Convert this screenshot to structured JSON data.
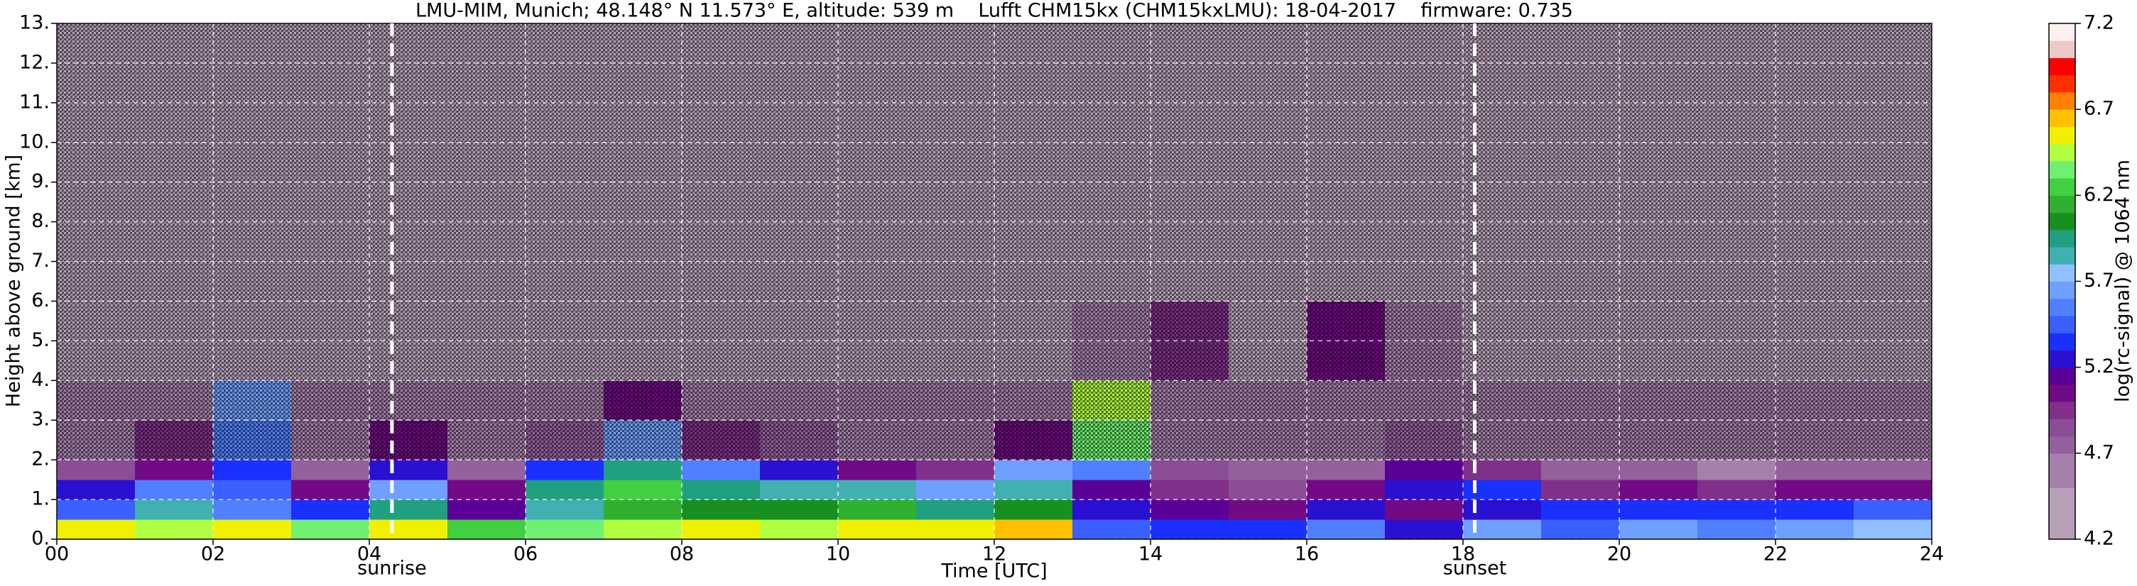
{
  "chart_data": {
    "type": "heatmap",
    "title": "LMU-MIM, Munich; 48.148° N 11.573° E, altitude: 539 m    Lufft CHM15kx (CHM15kxLMU): 18-04-2017    firmware: 0.735",
    "x_label": "Time [UTC]",
    "y_label": "Height above ground [km]",
    "colorbar_label": "log(rc-signal) @ 1064 nm",
    "xlim": [
      0,
      24
    ],
    "ylim": [
      0,
      13
    ],
    "xticks": [
      {
        "value": 0,
        "label": "00"
      },
      {
        "value": 2,
        "label": "02"
      },
      {
        "value": 4,
        "label": "04"
      },
      {
        "value": 6,
        "label": "06"
      },
      {
        "value": 8,
        "label": "08"
      },
      {
        "value": 10,
        "label": "10"
      },
      {
        "value": 12,
        "label": "12"
      },
      {
        "value": 14,
        "label": "14"
      },
      {
        "value": 16,
        "label": "16"
      },
      {
        "value": 18,
        "label": "18"
      },
      {
        "value": 20,
        "label": "20"
      },
      {
        "value": 22,
        "label": "22"
      },
      {
        "value": 24,
        "label": "24"
      }
    ],
    "yticks": [
      {
        "value": 0,
        "label": "0."
      },
      {
        "value": 1,
        "label": "1."
      },
      {
        "value": 2,
        "label": "2."
      },
      {
        "value": 3,
        "label": "3."
      },
      {
        "value": 4,
        "label": "4."
      },
      {
        "value": 5,
        "label": "5."
      },
      {
        "value": 6,
        "label": "6."
      },
      {
        "value": 7,
        "label": "7."
      },
      {
        "value": 8,
        "label": "8."
      },
      {
        "value": 9,
        "label": "9."
      },
      {
        "value": 10,
        "label": "10."
      },
      {
        "value": 11,
        "label": "11."
      },
      {
        "value": 12,
        "label": "12."
      },
      {
        "value": 13,
        "label": "13."
      }
    ],
    "grid": true,
    "clim": [
      4.2,
      7.2
    ],
    "cticks": [
      4.2,
      4.7,
      5.2,
      5.7,
      6.2,
      6.7,
      7.2
    ],
    "colormap": [
      "#b7a1b9",
      "#b7a1b9",
      "#b7a1b9",
      "#a580ab",
      "#a580ab",
      "#94609e",
      "#8b4d96",
      "#80308a",
      "#720a86",
      "#5a0097",
      "#2a10d0",
      "#1a30ff",
      "#3a60ff",
      "#5080ff",
      "#70a0ff",
      "#90c0ff",
      "#40b0b0",
      "#20a080",
      "#189020",
      "#30b030",
      "#40d040",
      "#70f070",
      "#b0ff40",
      "#f0f000",
      "#ffc000",
      "#ff8000",
      "#ff3000",
      "#ff0000",
      "#f0c8c8",
      "#fff0f0"
    ],
    "x_edges": [
      0,
      1,
      2,
      3,
      4,
      5,
      6,
      7,
      8,
      9,
      10,
      11,
      12,
      13,
      14,
      15,
      16,
      17,
      18,
      19,
      20,
      21,
      22,
      23,
      24
    ],
    "y_edges": [
      0,
      0.5,
      1,
      1.5,
      2,
      3,
      4,
      6,
      13
    ],
    "z": [
      [
        6.5,
        6.4,
        6.5,
        6.3,
        6.5,
        6.2,
        6.3,
        6.4,
        6.5,
        6.4,
        6.5,
        6.5,
        6.6,
        5.4,
        5.3,
        5.3,
        5.5,
        5.2,
        5.6,
        5.4,
        5.6,
        5.5,
        5.6,
        5.7
      ],
      [
        5.4,
        5.8,
        5.5,
        5.3,
        5.9,
        5.1,
        5.8,
        6.1,
        6.0,
        6.0,
        6.1,
        5.9,
        6.0,
        5.2,
        5.1,
        5.0,
        5.2,
        5.0,
        5.2,
        5.3,
        5.3,
        5.3,
        5.3,
        5.4
      ],
      [
        5.2,
        5.5,
        5.4,
        5.0,
        5.6,
        5.0,
        5.9,
        6.2,
        5.9,
        5.8,
        5.8,
        5.6,
        5.8,
        5.1,
        4.9,
        4.8,
        5.0,
        5.2,
        5.3,
        4.9,
        5.0,
        4.9,
        5.0,
        5.0
      ],
      [
        4.8,
        5.0,
        5.3,
        4.7,
        5.2,
        4.7,
        5.3,
        5.9,
        5.5,
        5.2,
        5.0,
        4.9,
        5.6,
        5.5,
        4.8,
        4.7,
        4.7,
        5.1,
        4.9,
        4.7,
        4.7,
        4.6,
        4.7,
        4.7
      ],
      [
        4.6,
        4.9,
        5.5,
        4.6,
        5.0,
        4.6,
        4.7,
        5.6,
        4.9,
        4.7,
        4.6,
        4.6,
        5.0,
        6.3,
        4.6,
        4.6,
        4.6,
        4.7,
        4.6,
        4.6,
        4.6,
        4.6,
        4.6,
        4.6
      ],
      [
        4.5,
        4.6,
        5.6,
        4.5,
        4.5,
        4.5,
        4.6,
        5.0,
        4.6,
        4.5,
        4.5,
        4.5,
        4.6,
        6.4,
        4.6,
        4.5,
        4.5,
        4.5,
        4.5,
        4.5,
        4.5,
        4.5,
        4.5,
        4.5
      ],
      [
        4.4,
        4.4,
        4.4,
        4.4,
        4.4,
        4.4,
        4.4,
        4.4,
        4.4,
        4.4,
        4.4,
        4.4,
        4.4,
        4.5,
        4.9,
        4.4,
        5.0,
        4.5,
        4.4,
        4.4,
        4.4,
        4.4,
        4.4,
        4.4
      ],
      [
        4.4,
        4.4,
        4.4,
        4.4,
        4.4,
        4.4,
        4.4,
        4.4,
        4.4,
        4.4,
        4.4,
        4.4,
        4.4,
        4.4,
        4.4,
        4.4,
        4.4,
        4.4,
        4.4,
        4.4,
        4.4,
        4.4,
        4.4,
        4.4
      ]
    ],
    "annotations": [
      {
        "x": 4.29,
        "label": "sunrise"
      },
      {
        "x": 18.15,
        "label": "sunset"
      }
    ]
  }
}
